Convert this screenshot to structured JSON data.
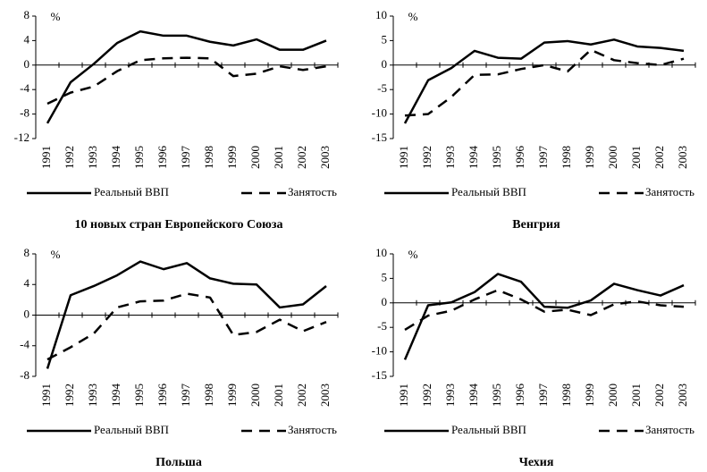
{
  "chart_data": [
    {
      "type": "line",
      "title": "10 новых стран Европейского Союза",
      "ylabel": "%",
      "categories": [
        "1991",
        "1992",
        "1993",
        "1994",
        "1995",
        "1996",
        "1997",
        "1998",
        "1999",
        "2000",
        "2001",
        "2002",
        "2003"
      ],
      "series": [
        {
          "name": "Реальный ВВП",
          "color": "#000000",
          "dashed": false,
          "values": [
            -9.5,
            -2.8,
            0.2,
            3.6,
            5.5,
            4.8,
            4.8,
            3.8,
            3.2,
            4.2,
            2.5,
            2.5,
            4.0
          ]
        },
        {
          "name": "Занятость",
          "color": "#000000",
          "dashed": true,
          "values": [
            -6.3,
            -4.5,
            -3.5,
            -1.0,
            0.8,
            1.1,
            1.2,
            1.1,
            -1.8,
            -1.4,
            -0.2,
            -0.8,
            -0.2
          ]
        }
      ],
      "ylim": [
        -12,
        8
      ],
      "yticks": [
        -12,
        -8,
        -4,
        0,
        4,
        8
      ]
    },
    {
      "type": "line",
      "title": "Венгрия",
      "ylabel": "%",
      "categories": [
        "1991",
        "1992",
        "1993",
        "1994",
        "1995",
        "1996",
        "1997",
        "1998",
        "1999",
        "2000",
        "2001",
        "2002",
        "2003"
      ],
      "series": [
        {
          "name": "Реальный ВВП",
          "color": "#000000",
          "dashed": false,
          "values": [
            -11.9,
            -3.1,
            -0.6,
            2.9,
            1.5,
            1.3,
            4.6,
            4.9,
            4.2,
            5.2,
            3.8,
            3.5,
            2.9
          ]
        },
        {
          "name": "Занятость",
          "color": "#000000",
          "dashed": true,
          "values": [
            -10.3,
            -10.0,
            -6.5,
            -2.0,
            -1.9,
            -0.8,
            0.0,
            -1.3,
            3.1,
            1.0,
            0.4,
            0.0,
            1.3
          ]
        }
      ],
      "ylim": [
        -15,
        10
      ],
      "yticks": [
        -15,
        -10,
        -5,
        0,
        5,
        10
      ]
    },
    {
      "type": "line",
      "title": "Польша",
      "ylabel": "%",
      "categories": [
        "1991",
        "1992",
        "1993",
        "1994",
        "1995",
        "1996",
        "1997",
        "1998",
        "1999",
        "2000",
        "2001",
        "2002",
        "2003"
      ],
      "series": [
        {
          "name": "Реальный ВВП",
          "color": "#000000",
          "dashed": false,
          "values": [
            -7.0,
            2.6,
            3.8,
            5.2,
            7.0,
            6.0,
            6.8,
            4.8,
            4.1,
            4.0,
            1.0,
            1.4,
            3.8
          ]
        },
        {
          "name": "Занятость",
          "color": "#000000",
          "dashed": true,
          "values": [
            -5.8,
            -4.2,
            -2.4,
            1.0,
            1.8,
            1.9,
            2.8,
            2.3,
            -2.6,
            -2.2,
            -0.6,
            -2.1,
            -0.9
          ]
        }
      ],
      "ylim": [
        -8,
        8
      ],
      "yticks": [
        -8,
        -4,
        0,
        4,
        8
      ]
    },
    {
      "type": "line",
      "title": "Чехия",
      "ylabel": "%",
      "categories": [
        "1991",
        "1992",
        "1993",
        "1994",
        "1995",
        "1996",
        "1997",
        "1998",
        "1999",
        "2000",
        "2001",
        "2002",
        "2003"
      ],
      "series": [
        {
          "name": "Реальный ВВП",
          "color": "#000000",
          "dashed": false,
          "values": [
            -11.6,
            -0.5,
            0.1,
            2.2,
            5.9,
            4.3,
            -0.8,
            -1.0,
            0.5,
            3.9,
            2.6,
            1.5,
            3.6
          ]
        },
        {
          "name": "Занятость",
          "color": "#000000",
          "dashed": true,
          "values": [
            -5.5,
            -2.6,
            -1.6,
            0.7,
            2.6,
            0.7,
            -1.8,
            -1.4,
            -2.5,
            -0.3,
            0.3,
            -0.5,
            -0.8
          ]
        }
      ],
      "ylim": [
        -15,
        10
      ],
      "yticks": [
        -15,
        -10,
        -5,
        0,
        5,
        10
      ]
    }
  ]
}
